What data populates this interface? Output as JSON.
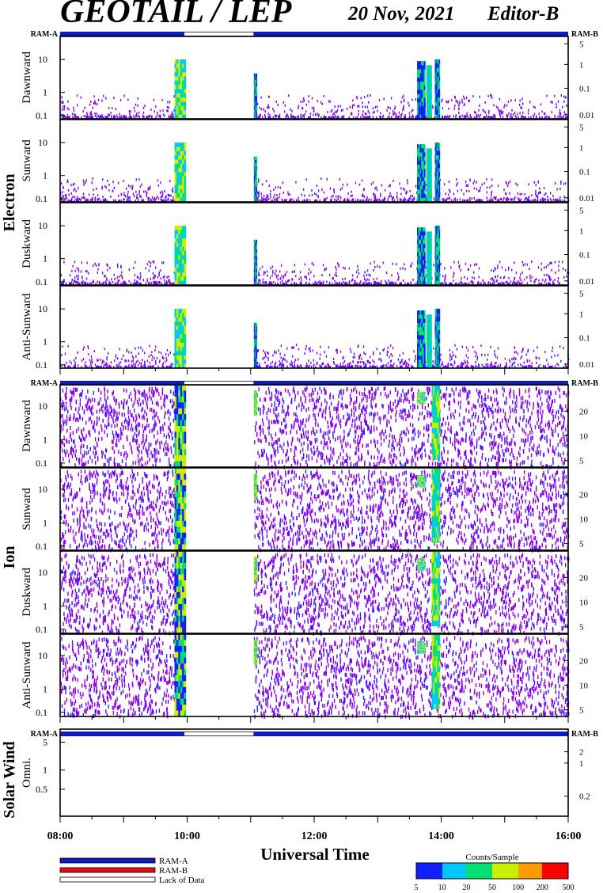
{
  "header": {
    "title": "GEOTAIL / LEP",
    "date": "20 Nov, 2021",
    "editor": "Editor-B"
  },
  "status_bar": {
    "left_label": "RAM-A",
    "right_label": "RAM-B"
  },
  "colors": {
    "ram_a": "#0a1fbe",
    "ram_b": "#e01010",
    "lack_of_data": "#ffffff"
  },
  "groups": [
    {
      "label": "Electron"
    },
    {
      "label": "Ion"
    },
    {
      "label": "Solar Wind"
    }
  ],
  "chart_data": {
    "type": "heatmap",
    "xlabel": "Universal Time",
    "x_ticks": [
      "08:00",
      "10:00",
      "12:00",
      "14:00",
      "16:00"
    ],
    "x_range_hours": [
      8,
      16
    ],
    "panels": [
      {
        "group": "Electron",
        "label": "Dawnward",
        "y_ticks": [
          "10",
          "1",
          "0.1"
        ],
        "right_ticks": [
          "5",
          "1",
          "0.1",
          "0.01"
        ]
      },
      {
        "group": "Electron",
        "label": "Sunward",
        "y_ticks": [
          "10",
          "1",
          "0.1"
        ],
        "right_ticks": [
          "5",
          "1",
          "0.1",
          "0.01"
        ]
      },
      {
        "group": "Electron",
        "label": "Duskward",
        "y_ticks": [
          "10",
          "1",
          "0.1"
        ],
        "right_ticks": [
          "5",
          "1",
          "0.1",
          "0.01"
        ]
      },
      {
        "group": "Electron",
        "label": "Anti-Sunward",
        "y_ticks": [
          "10",
          "1",
          "0.1"
        ],
        "right_ticks": [
          "5",
          "1",
          "0.1",
          "0.01"
        ]
      },
      {
        "group": "Ion",
        "label": "Dawnward",
        "y_ticks": [
          "10",
          "1",
          "0.1"
        ],
        "right_ticks": [
          "20",
          "10",
          "5"
        ]
      },
      {
        "group": "Ion",
        "label": "Sunward",
        "y_ticks": [
          "10",
          "1",
          "0.1"
        ],
        "right_ticks": [
          "20",
          "10",
          "5"
        ]
      },
      {
        "group": "Ion",
        "label": "Duskward",
        "y_ticks": [
          "10",
          "1",
          "0.1"
        ],
        "right_ticks": [
          "20",
          "10",
          "5"
        ]
      },
      {
        "group": "Ion",
        "label": "Anti-Sunward",
        "y_ticks": [
          "10",
          "1",
          "0.1"
        ],
        "right_ticks": [
          "20",
          "10",
          "5"
        ]
      },
      {
        "group": "Solar Wind",
        "label": "Omni.",
        "y_ticks": [
          "5",
          "1",
          "0.5"
        ],
        "right_ticks": [
          "2",
          "1",
          "0.2"
        ]
      }
    ],
    "data_gaps_hours": [
      [
        9.95,
        11.05
      ]
    ],
    "colorbar": {
      "title": "Counts/Sample",
      "ticks": [
        "5",
        "10",
        "20",
        "50",
        "100",
        "200",
        "500"
      ]
    }
  },
  "legend": [
    {
      "label": "RAM-A",
      "color": "#0a1fbe"
    },
    {
      "label": "RAM-B",
      "color": "#e01010"
    },
    {
      "label": "Lack of Data",
      "color": "#ffffff"
    }
  ]
}
